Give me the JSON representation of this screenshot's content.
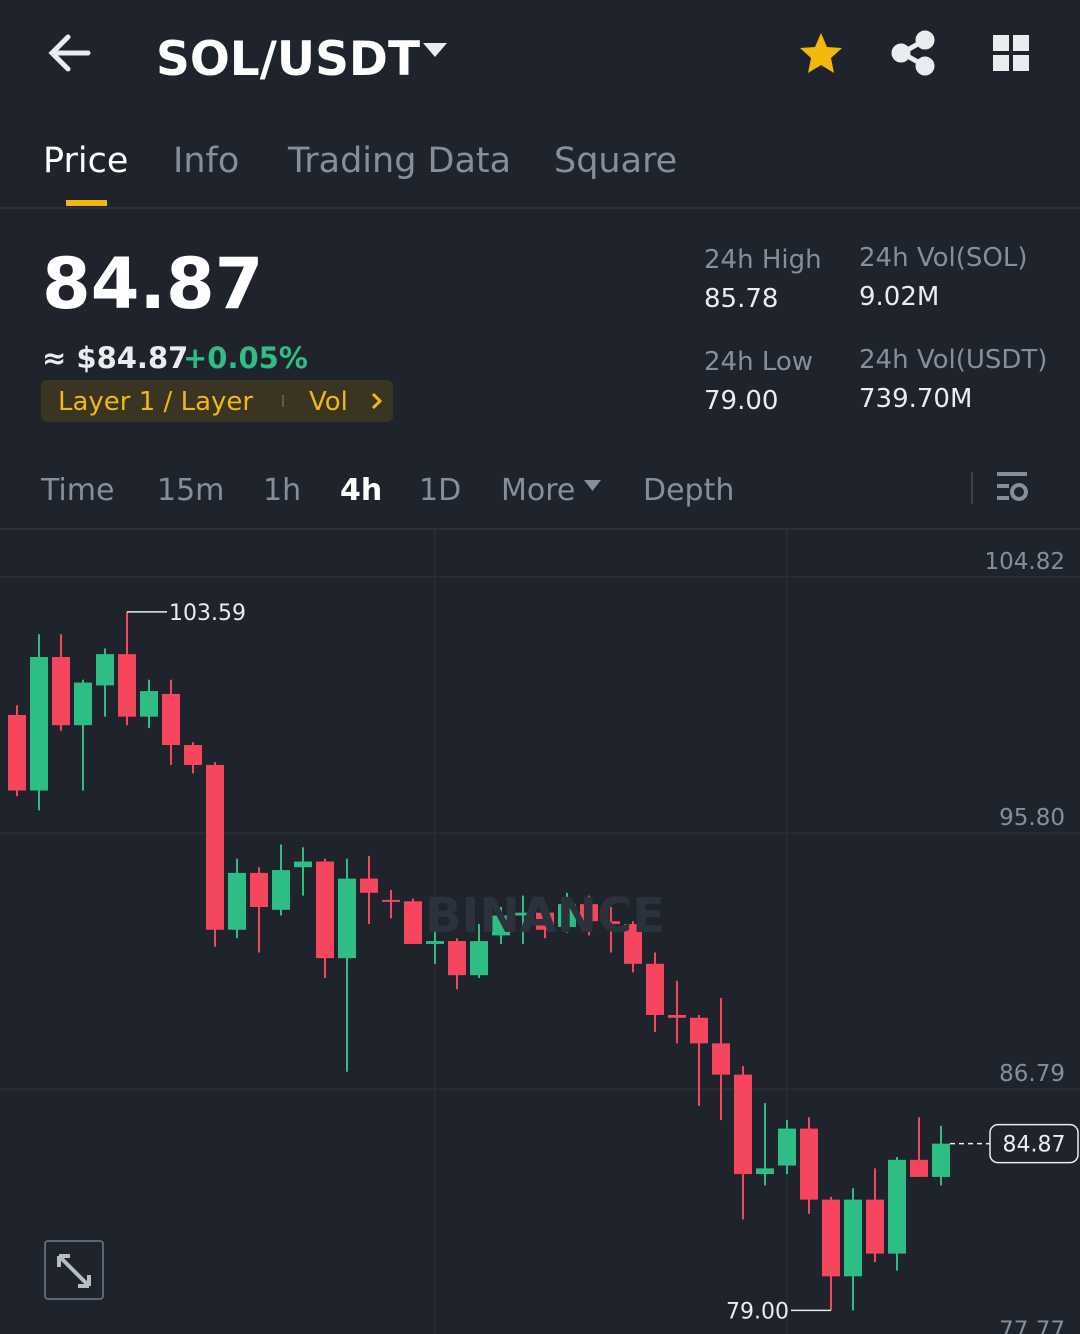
{
  "header": {
    "title": "SOL/USDT"
  },
  "tabs": [
    "Price",
    "Info",
    "Trading Data",
    "Square"
  ],
  "price": {
    "last": "84.87",
    "approx": "≈ $84.87",
    "change": "+0.05%",
    "tag": "Layer 1 / Layer",
    "tag2": "Vol"
  },
  "stats": [
    {
      "label": "24h High",
      "value": "85.78"
    },
    {
      "label": "24h Vol(SOL)",
      "value": "9.02M"
    },
    {
      "label": "24h Low",
      "value": "79.00"
    },
    {
      "label": "24h Vol(USDT)",
      "value": "739.70M"
    }
  ],
  "intervals": [
    "Time",
    "15m",
    "1h",
    "4h",
    "1D",
    "More",
    "Depth"
  ],
  "chart_data": {
    "type": "candlestick",
    "watermark": "BINANCE",
    "up_color": "#2ebd85",
    "down_color": "#f6465d",
    "categories": [
      null,
      null,
      null,
      null,
      null,
      null,
      null,
      null,
      null,
      null,
      null,
      null,
      null,
      null,
      null,
      null,
      null,
      null,
      null,
      null,
      null,
      null,
      null,
      null,
      null,
      null,
      null,
      null,
      null,
      null,
      null,
      null,
      null,
      null,
      null,
      null,
      null,
      null,
      null,
      null,
      null,
      null,
      null
    ],
    "open": [
      99.96,
      97.3,
      102.0,
      99.6,
      101.0,
      102.1,
      99.9,
      100.7,
      98.9,
      98.2,
      92.4,
      94.4,
      93.1,
      94.6,
      94.8,
      91.4,
      94.2,
      93.45,
      93.4,
      91.9,
      92.0,
      90.8,
      92.2,
      92.9,
      93.0,
      92.5,
      93.3,
      92.7,
      92.6,
      91.2,
      89.4,
      89.3,
      88.4,
      87.3,
      83.8,
      84.1,
      85.4,
      82.9,
      80.2,
      82.9,
      81.0,
      84.3,
      83.7
    ],
    "high": [
      100.3,
      102.8,
      102.8,
      101.2,
      102.3,
      103.59,
      101.2,
      101.2,
      99.0,
      98.3,
      94.9,
      94.6,
      95.4,
      95.3,
      94.9,
      94.9,
      95.0,
      93.8,
      93.5,
      92.4,
      92.1,
      92.6,
      93.2,
      93.6,
      93.3,
      93.7,
      93.6,
      93.2,
      92.7,
      91.6,
      90.6,
      89.4,
      90.0,
      87.6,
      86.3,
      85.7,
      85.8,
      83.0,
      83.3,
      84.0,
      84.4,
      85.8,
      85.5
    ],
    "low": [
      97.1,
      96.6,
      99.4,
      97.3,
      99.9,
      99.6,
      99.5,
      98.2,
      97.9,
      91.8,
      92.1,
      91.6,
      92.9,
      93.6,
      90.7,
      87.4,
      92.6,
      92.8,
      91.9,
      91.2,
      90.3,
      90.7,
      91.9,
      91.9,
      92.1,
      92.3,
      92.2,
      91.6,
      90.9,
      88.8,
      88.4,
      86.2,
      85.7,
      82.2,
      83.4,
      83.8,
      82.4,
      79.0,
      79.0,
      80.7,
      80.4,
      83.7,
      83.4
    ],
    "close": [
      97.3,
      102.0,
      99.6,
      101.1,
      102.1,
      99.9,
      100.8,
      98.9,
      98.2,
      92.4,
      94.4,
      93.2,
      94.5,
      94.8,
      91.4,
      94.2,
      93.7,
      93.4,
      91.9,
      92.0,
      90.8,
      92.0,
      92.9,
      93.0,
      92.4,
      93.3,
      92.7,
      92.6,
      91.2,
      89.4,
      89.3,
      88.4,
      87.3,
      83.8,
      84.0,
      85.4,
      82.9,
      80.2,
      82.9,
      81.0,
      84.3,
      83.7,
      84.87
    ],
    "ylim": [
      78.17,
      106.47
    ],
    "yticks": [
      104.82,
      {
        "value": 95.8,
        "label": "95.80"
      },
      86.79,
      77.77
    ],
    "grid": true,
    "annotations": [
      {
        "value": 103.59,
        "label": "103.59",
        "kind": "high"
      },
      {
        "value": 79,
        "label": "79.00",
        "kind": "low"
      },
      {
        "value": 84.87,
        "label": "84.87",
        "kind": "last"
      }
    ]
  }
}
